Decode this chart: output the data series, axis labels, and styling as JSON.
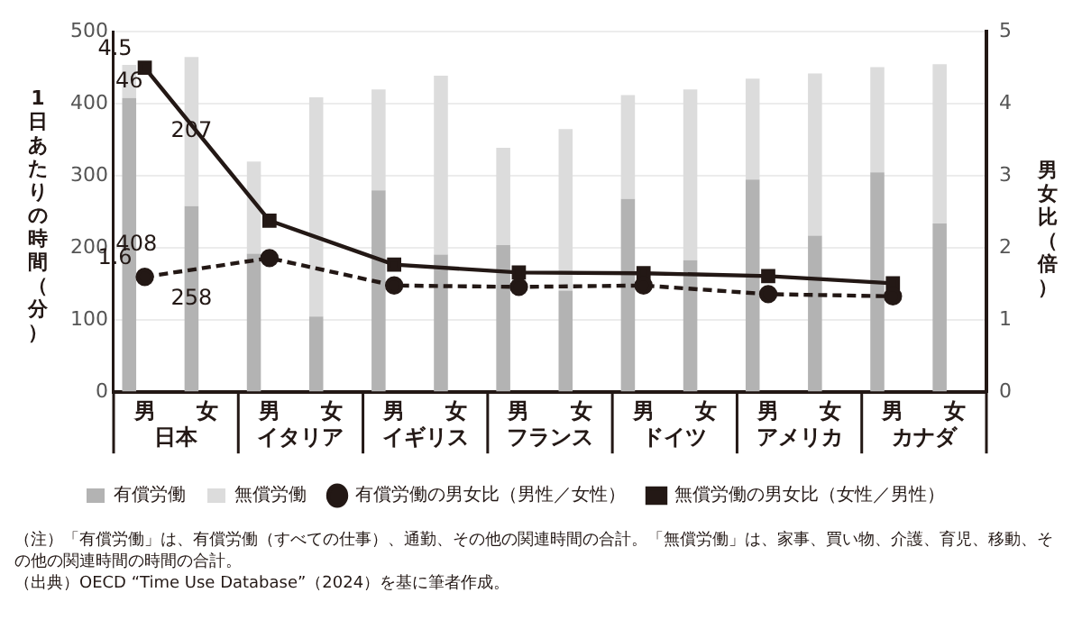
{
  "chart_data": {
    "type": "bar",
    "stacked": true,
    "categories": [
      "男",
      "女",
      "男",
      "女",
      "男",
      "女",
      "男",
      "女",
      "男",
      "女",
      "男",
      "女",
      "男",
      "女"
    ],
    "series": [
      {
        "name": "有償労働",
        "color": "#b3b3b3",
        "values": [
          408,
          258,
          192,
          105,
          280,
          191,
          204,
          141,
          268,
          183,
          295,
          217,
          305,
          234
        ],
        "value_labels": [
          "408",
          "258",
          null,
          null,
          null,
          null,
          null,
          null,
          null,
          null,
          null,
          null,
          null,
          null
        ]
      },
      {
        "name": "無償労働",
        "color": "#dcdcdc",
        "values": [
          46,
          207,
          128,
          304,
          140,
          248,
          135,
          224,
          144,
          237,
          140,
          225,
          146,
          221
        ],
        "value_labels": [
          "46",
          "207",
          null,
          null,
          null,
          null,
          null,
          null,
          null,
          null,
          null,
          null,
          null,
          null
        ]
      },
      {
        "name": "有償労働の男女比（男性／女性）",
        "type": "line",
        "axis": "y2",
        "color": "#231815",
        "marker": "circle",
        "line_style": "dashed",
        "values": [
          1.6,
          null,
          1.86,
          null,
          1.48,
          null,
          1.46,
          null,
          1.48,
          null,
          1.36,
          null,
          1.33,
          null
        ],
        "value_labels": [
          "1.6",
          null,
          null,
          null,
          null,
          null,
          null,
          null,
          null,
          null,
          null,
          null,
          null,
          null
        ]
      },
      {
        "name": "無償労働の男女比（女性／男性）",
        "type": "line",
        "axis": "y2",
        "color": "#231815",
        "marker": "square",
        "line_style": "solid",
        "values": [
          4.5,
          null,
          2.38,
          null,
          1.77,
          null,
          1.66,
          null,
          1.65,
          null,
          1.61,
          null,
          1.51,
          null
        ],
        "value_labels": [
          "4.5",
          null,
          null,
          null,
          null,
          null,
          null,
          null,
          null,
          null,
          null,
          null,
          null,
          null
        ]
      }
    ],
    "ylabel": "1日あたりの時間（分）",
    "y2label": "男女比（倍）",
    "ylim": [
      0,
      500
    ],
    "yticks": [
      0,
      100,
      200,
      300,
      400,
      500
    ],
    "y2lim": [
      0,
      5
    ],
    "y2ticks": [
      0,
      1,
      2,
      3,
      4,
      5
    ],
    "grid": "y",
    "legend": "bottom",
    "annotations": [
      "日本",
      "イタリア",
      "イギリス",
      "フランス",
      "ドイツ",
      "アメリカ",
      "カナダ",
      "（注）「有償労働」は、有償労働（すべての仕事）、通勤、その他の関連時間の合計。「無償労働」は、家事、買い物、介護、育児、移動、その他の関連時間の時間の合計。",
      "（出典）OECD “Time Use Database”（2024）を基に筆者作成。"
    ]
  }
}
